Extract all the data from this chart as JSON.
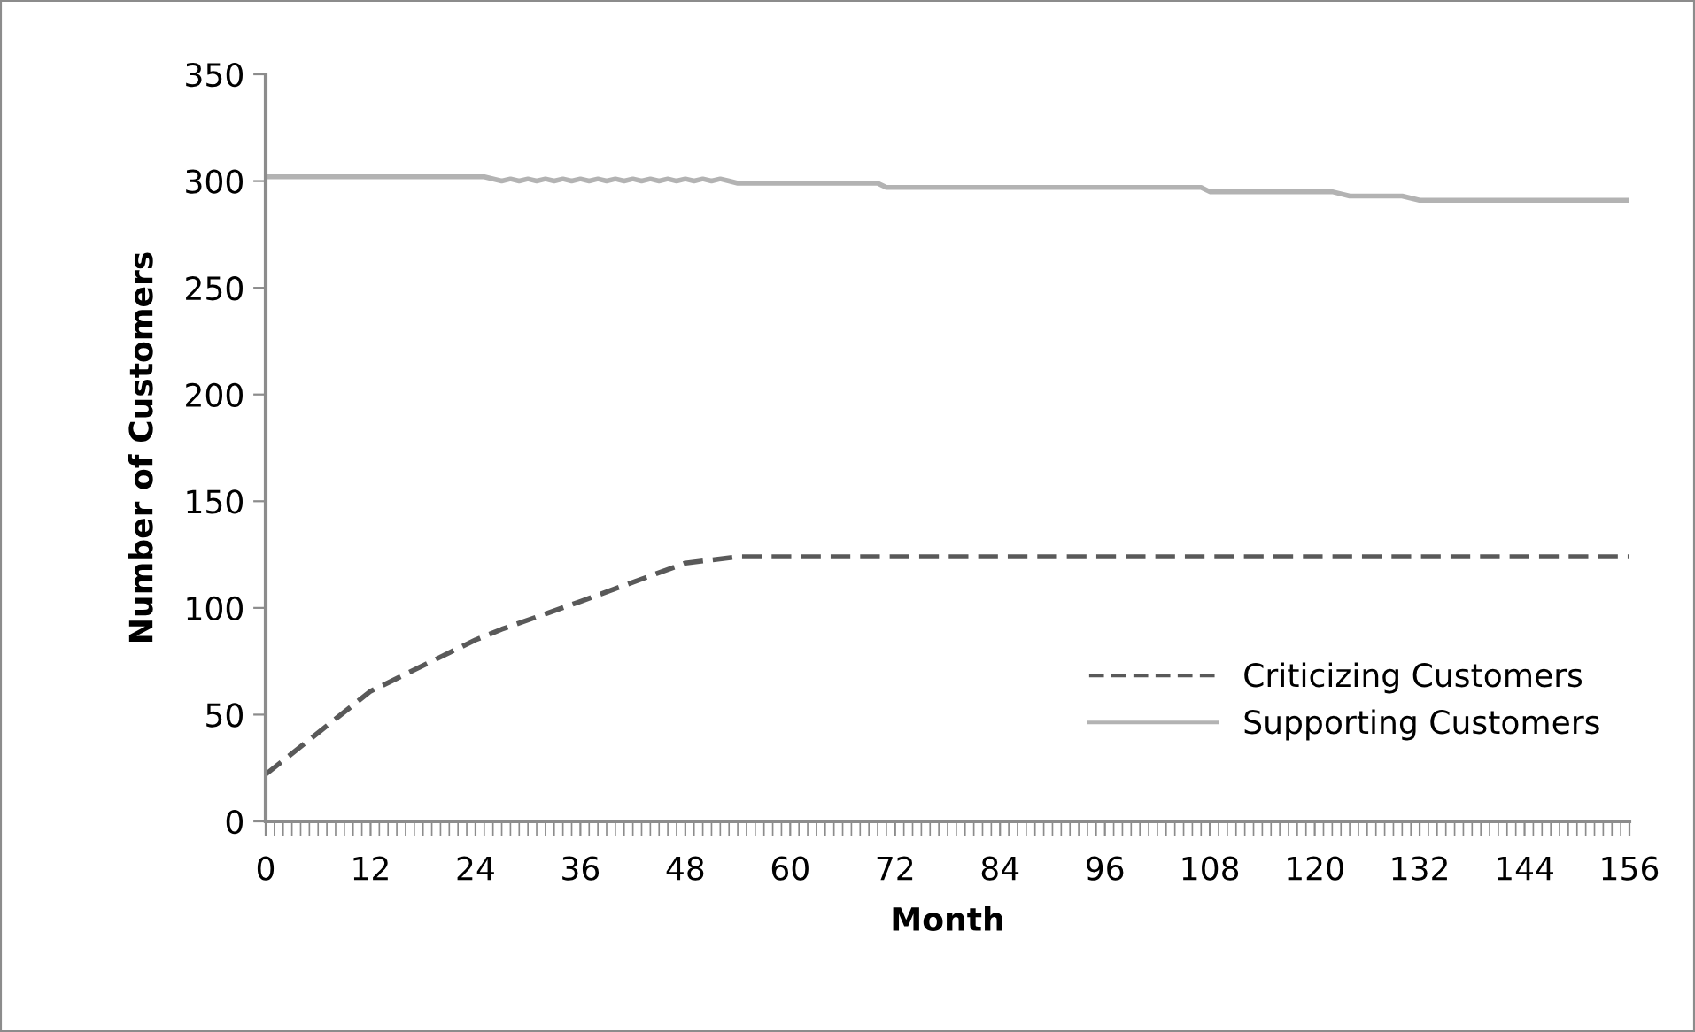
{
  "chart_data": {
    "type": "line",
    "xlabel": "Month",
    "ylabel": "Number of Customers",
    "xlim": [
      0,
      156
    ],
    "xticks": [
      0,
      12,
      24,
      36,
      48,
      60,
      72,
      84,
      96,
      108,
      120,
      132,
      144,
      156
    ],
    "ylim": [
      0,
      350
    ],
    "yticks": [
      0,
      50,
      100,
      150,
      200,
      250,
      300,
      350
    ],
    "grid": false,
    "legend": "bottom right",
    "marker": "none",
    "series": [
      {
        "name": "Criticizing Customers",
        "color": "#595959",
        "line_style": "dashed",
        "x": [
          0,
          12,
          24,
          27,
          36,
          48,
          54,
          156
        ],
        "values": [
          22,
          61,
          85,
          90,
          103,
          121,
          124,
          124
        ]
      },
      {
        "name": "Supporting Customers",
        "color": "#b3b3b3",
        "line_style": "solid",
        "x": [
          0,
          25,
          27,
          28,
          29,
          30,
          31,
          32,
          33,
          34,
          35,
          36,
          37,
          38,
          39,
          40,
          41,
          42,
          43,
          44,
          45,
          46,
          47,
          48,
          49,
          50,
          51,
          52,
          53,
          54,
          70,
          71,
          107,
          108,
          122,
          124,
          130,
          132,
          156
        ],
        "values": [
          302,
          302,
          300,
          301,
          300,
          301,
          300,
          301,
          300,
          301,
          300,
          301,
          300,
          301,
          300,
          301,
          300,
          301,
          300,
          301,
          300,
          301,
          300,
          301,
          300,
          301,
          300,
          301,
          300,
          299,
          299,
          297,
          297,
          295,
          295,
          293,
          293,
          291,
          291
        ]
      }
    ]
  }
}
